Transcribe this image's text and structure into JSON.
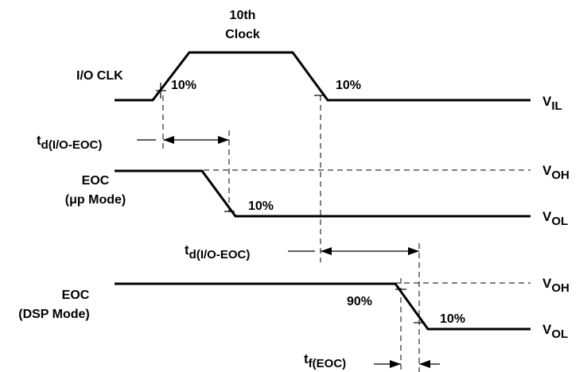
{
  "diagram": {
    "clock_title_line1": "10th",
    "clock_title_line2": "Clock",
    "io_clk_label": "I/O CLK",
    "clk_rise_pct": "10%",
    "clk_fall_pct": "10%",
    "vil": {
      "main": "V",
      "sub": "IL"
    },
    "td1": {
      "main": "t",
      "sub": "d(I/O-EOC)"
    },
    "eoc_up_label_line1": "EOC",
    "eoc_up_label_line2": "(μp Mode)",
    "voh_1": {
      "main": "V",
      "sub": "OH"
    },
    "vol_1": {
      "main": "V",
      "sub": "OL"
    },
    "eoc_up_pct": "10%",
    "td2": {
      "main": "t",
      "sub": "d(I/O-EOC)"
    },
    "eoc_dsp_label_line1": "EOC",
    "eoc_dsp_label_line2": "(DSP Mode)",
    "voh_2": {
      "main": "V",
      "sub": "OH"
    },
    "vol_2": {
      "main": "V",
      "sub": "OL"
    },
    "dsp_90_pct": "90%",
    "dsp_10_pct": "10%",
    "tf": {
      "main": "t",
      "sub": "f(EOC)"
    }
  }
}
